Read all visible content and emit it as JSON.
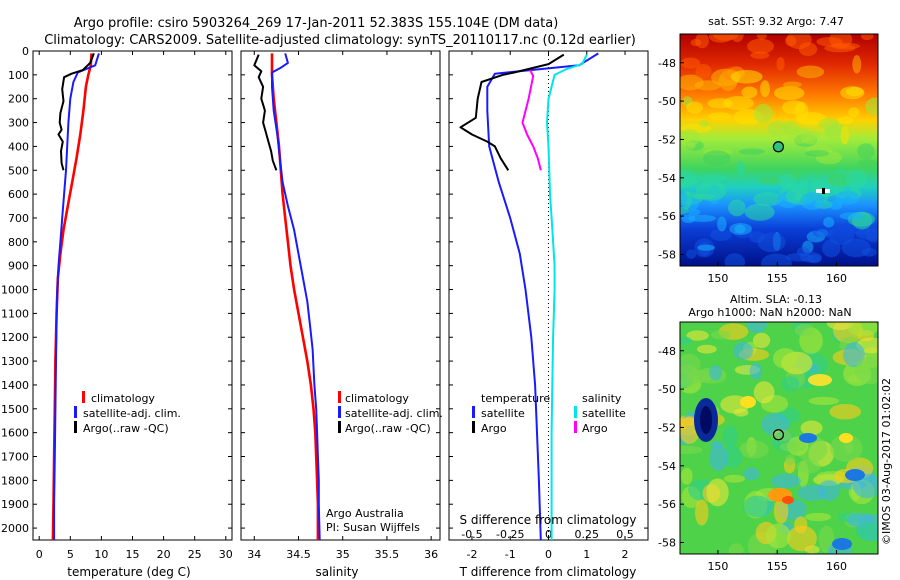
{
  "figure": {
    "title_line1": "Argo profile: csiro 5903264_269 17-Jan-2011 52.383S 155.104E (DM data)",
    "title_line2": "Climatology: CARS2009. Satellite-adjusted climatology: synTS_20110117.nc (0.12d earlier)",
    "watermark": "©IMOS 03-Aug-2017 01:02:02",
    "credit_line1": "Argo Australia",
    "credit_line2": "PI: Susan Wijffels"
  },
  "colors": {
    "climatology": "#ff0000",
    "satellite": "#1a1aff",
    "argo": "#000000",
    "satellite_salinity": "#00e5e5",
    "argo_salinity": "#ff00ff",
    "marker": "#2ec27e"
  },
  "chart_data": [
    {
      "id": "temperature",
      "type": "line",
      "xlabel": "temperature (deg C)",
      "ylabel": "",
      "xlim": [
        -1,
        31
      ],
      "ylim": [
        2050,
        0
      ],
      "y_inverted": true,
      "xticks": [
        0,
        5,
        10,
        15,
        20,
        25,
        30
      ],
      "yticks": [
        0,
        100,
        200,
        300,
        400,
        500,
        600,
        700,
        800,
        900,
        1000,
        1100,
        1200,
        1300,
        1400,
        1500,
        1600,
        1700,
        1800,
        1900,
        2000
      ],
      "legend_placement": "lower-right",
      "legend": [
        "climatology",
        "satellite-adj. clim.",
        "Argo(..raw -QC)"
      ],
      "series": [
        {
          "name": "climatology",
          "color_key": "climatology",
          "points": [
            [
              8.4,
              10
            ],
            [
              8.3,
              60
            ],
            [
              7.9,
              100
            ],
            [
              7.5,
              150
            ],
            [
              7.1,
              250
            ],
            [
              6.6,
              350
            ],
            [
              6.0,
              450
            ],
            [
              5.3,
              550
            ],
            [
              4.6,
              650
            ],
            [
              3.9,
              750
            ],
            [
              3.4,
              850
            ],
            [
              3.0,
              950
            ],
            [
              2.8,
              1100
            ],
            [
              2.6,
              1300
            ],
            [
              2.5,
              1500
            ],
            [
              2.4,
              1700
            ],
            [
              2.3,
              1900
            ],
            [
              2.2,
              2050
            ]
          ]
        },
        {
          "name": "satellite-adj. clim.",
          "color_key": "satellite",
          "points": [
            [
              9.6,
              10
            ],
            [
              9.0,
              60
            ],
            [
              6.2,
              90
            ],
            [
              5.5,
              130
            ],
            [
              5.0,
              200
            ],
            [
              4.7,
              300
            ],
            [
              4.5,
              400
            ],
            [
              4.3,
              500
            ],
            [
              4.0,
              600
            ],
            [
              3.7,
              700
            ],
            [
              3.4,
              800
            ],
            [
              3.1,
              900
            ],
            [
              2.9,
              1000
            ],
            [
              2.8,
              1100
            ],
            [
              2.7,
              1300
            ],
            [
              2.6,
              1500
            ],
            [
              2.5,
              1700
            ],
            [
              2.4,
              1900
            ],
            [
              2.4,
              2050
            ]
          ]
        },
        {
          "name": "Argo(..raw -QC)",
          "color_key": "argo",
          "points": [
            [
              8.8,
              10
            ],
            [
              8.2,
              50
            ],
            [
              7.0,
              80
            ],
            [
              5.2,
              95
            ],
            [
              4.0,
              110
            ],
            [
              3.7,
              160
            ],
            [
              3.9,
              210
            ],
            [
              3.4,
              260
            ],
            [
              3.3,
              300
            ],
            [
              3.6,
              330
            ],
            [
              3.1,
              350
            ],
            [
              3.8,
              380
            ],
            [
              3.5,
              420
            ],
            [
              3.6,
              470
            ],
            [
              3.9,
              500
            ]
          ]
        }
      ]
    },
    {
      "id": "salinity",
      "type": "line",
      "xlabel": "salinity",
      "ylabel": "",
      "xlim": [
        33.85,
        36.1
      ],
      "ylim": [
        2050,
        0
      ],
      "y_inverted": true,
      "xticks": [
        34,
        34.5,
        35,
        35.5,
        36
      ],
      "xticklabels": [
        "34",
        "34.5",
        "35",
        "35.5",
        "36"
      ],
      "legend_placement": "lower-right",
      "legend": [
        "climatology",
        "satellite-adj. clim.",
        "Argo(..raw -QC)"
      ],
      "series": [
        {
          "name": "climatology",
          "color_key": "climatology",
          "points": [
            [
              34.2,
              10
            ],
            [
              34.2,
              100
            ],
            [
              34.22,
              200
            ],
            [
              34.25,
              300
            ],
            [
              34.28,
              400
            ],
            [
              34.3,
              500
            ],
            [
              34.32,
              600
            ],
            [
              34.35,
              700
            ],
            [
              34.38,
              800
            ],
            [
              34.41,
              900
            ],
            [
              34.45,
              1000
            ],
            [
              34.5,
              1100
            ],
            [
              34.55,
              1200
            ],
            [
              34.6,
              1300
            ],
            [
              34.64,
              1400
            ],
            [
              34.67,
              1500
            ],
            [
              34.69,
              1600
            ],
            [
              34.7,
              1700
            ],
            [
              34.71,
              1800
            ],
            [
              34.72,
              1900
            ],
            [
              34.72,
              2050
            ]
          ]
        },
        {
          "name": "satellite-adj. clim.",
          "color_key": "satellite",
          "points": [
            [
              34.35,
              10
            ],
            [
              34.38,
              50
            ],
            [
              34.3,
              70
            ],
            [
              34.2,
              90
            ],
            [
              34.2,
              150
            ],
            [
              34.22,
              250
            ],
            [
              34.26,
              350
            ],
            [
              34.29,
              450
            ],
            [
              34.32,
              550
            ],
            [
              34.38,
              650
            ],
            [
              34.45,
              750
            ],
            [
              34.5,
              850
            ],
            [
              34.55,
              950
            ],
            [
              34.6,
              1050
            ],
            [
              34.63,
              1150
            ],
            [
              34.66,
              1250
            ],
            [
              34.68,
              1400
            ],
            [
              34.7,
              1500
            ],
            [
              34.71,
              1600
            ],
            [
              34.72,
              1700
            ],
            [
              34.73,
              1800
            ],
            [
              34.73,
              1900
            ],
            [
              34.74,
              2050
            ]
          ]
        },
        {
          "name": "Argo(..raw -QC)",
          "color_key": "argo",
          "points": [
            [
              34.05,
              15
            ],
            [
              34.0,
              60
            ],
            [
              34.08,
              85
            ],
            [
              34.05,
              110
            ],
            [
              34.1,
              150
            ],
            [
              34.08,
              200
            ],
            [
              34.12,
              250
            ],
            [
              34.1,
              300
            ],
            [
              34.13,
              340
            ],
            [
              34.16,
              380
            ],
            [
              34.19,
              420
            ],
            [
              34.21,
              460
            ],
            [
              34.25,
              500
            ]
          ]
        }
      ]
    },
    {
      "id": "difference",
      "type": "line",
      "xlabel": "T difference from climatology",
      "xlabel_top": "S difference from climatology",
      "xlim": [
        -2.6,
        2.6
      ],
      "ylim": [
        2050,
        0
      ],
      "y_inverted": true,
      "xticks": [
        -2,
        -1,
        0,
        1,
        2
      ],
      "s_ticks": [
        -0.5,
        -0.25,
        0,
        0.25,
        0.5
      ],
      "s_ticklabels": [
        "-0.5",
        "-0.25",
        "0",
        "0.25",
        "0.5"
      ],
      "s_scale": 4,
      "zero_line": "dotted",
      "legend_placement": "lower-center",
      "legend_temperature_title": "temperature",
      "legend_salinity_title": "salinity",
      "legend_temperature": [
        "satellite",
        "Argo"
      ],
      "legend_salinity": [
        "satellite",
        "Argo"
      ],
      "series": [
        {
          "name": "temperature satellite",
          "color_key": "satellite",
          "points": [
            [
              1.3,
              10
            ],
            [
              0.8,
              60
            ],
            [
              -1.4,
              95
            ],
            [
              -1.6,
              150
            ],
            [
              -1.6,
              250
            ],
            [
              -1.55,
              400
            ],
            [
              -1.3,
              550
            ],
            [
              -1.0,
              700
            ],
            [
              -0.75,
              850
            ],
            [
              -0.6,
              1000
            ],
            [
              -0.45,
              1200
            ],
            [
              -0.35,
              1400
            ],
            [
              -0.3,
              1600
            ],
            [
              -0.25,
              1800
            ],
            [
              -0.2,
              2050
            ]
          ]
        },
        {
          "name": "temperature Argo",
          "color_key": "argo",
          "points": [
            [
              0.4,
              15
            ],
            [
              0.0,
              55
            ],
            [
              -0.9,
              90
            ],
            [
              -1.2,
              100
            ],
            [
              -1.75,
              130
            ],
            [
              -1.85,
              200
            ],
            [
              -1.9,
              280
            ],
            [
              -2.3,
              320
            ],
            [
              -2.0,
              350
            ],
            [
              -1.6,
              380
            ],
            [
              -1.4,
              400
            ],
            [
              -1.25,
              450
            ],
            [
              -1.05,
              500
            ]
          ]
        },
        {
          "name": "salinity satellite",
          "color_key": "satellite_salinity",
          "points": [
            [
              0.25,
              15
            ],
            [
              0.22,
              55
            ],
            [
              0.12,
              75
            ],
            [
              0.04,
              100
            ],
            [
              0.0,
              200
            ],
            [
              -0.01,
              300
            ],
            [
              0.0,
              400
            ],
            [
              0.005,
              500
            ],
            [
              0.01,
              600
            ],
            [
              0.02,
              700
            ],
            [
              0.03,
              800
            ],
            [
              0.04,
              900
            ],
            [
              0.04,
              1000
            ],
            [
              0.03,
              1200
            ],
            [
              0.025,
              1400
            ],
            [
              0.02,
              1600
            ],
            [
              0.02,
              1800
            ],
            [
              0.02,
              2050
            ]
          ]
        },
        {
          "name": "salinity Argo",
          "color_key": "argo_salinity",
          "points": [
            [
              -0.12,
              80
            ],
            [
              -0.1,
              105
            ],
            [
              -0.13,
              200
            ],
            [
              -0.17,
              300
            ],
            [
              -0.14,
              350
            ],
            [
              -0.1,
              400
            ],
            [
              -0.07,
              450
            ],
            [
              -0.05,
              500
            ]
          ]
        }
      ]
    },
    {
      "id": "sst-map",
      "type": "heatmap",
      "title": "sat. SST: 9.32  Argo: 7.47",
      "lon_range": [
        146.8,
        163.5
      ],
      "lat_range": [
        -58.6,
        -46.5
      ],
      "xticks": [
        150,
        155,
        160
      ],
      "yticks": [
        -48,
        -50,
        -52,
        -54,
        -56,
        -58
      ],
      "argo_marker": [
        155.1,
        -52.38
      ]
    },
    {
      "id": "sla-map",
      "type": "heatmap",
      "title": "Altim. SLA: -0.13",
      "subtitle": "Argo h1000: NaN h2000: NaN",
      "lon_range": [
        146.8,
        163.5
      ],
      "lat_range": [
        -58.6,
        -46.5
      ],
      "xticks": [
        150,
        155,
        160
      ],
      "yticks": [
        -48,
        -50,
        -52,
        -54,
        -56,
        -58
      ],
      "argo_marker": [
        155.1,
        -52.38
      ]
    }
  ]
}
